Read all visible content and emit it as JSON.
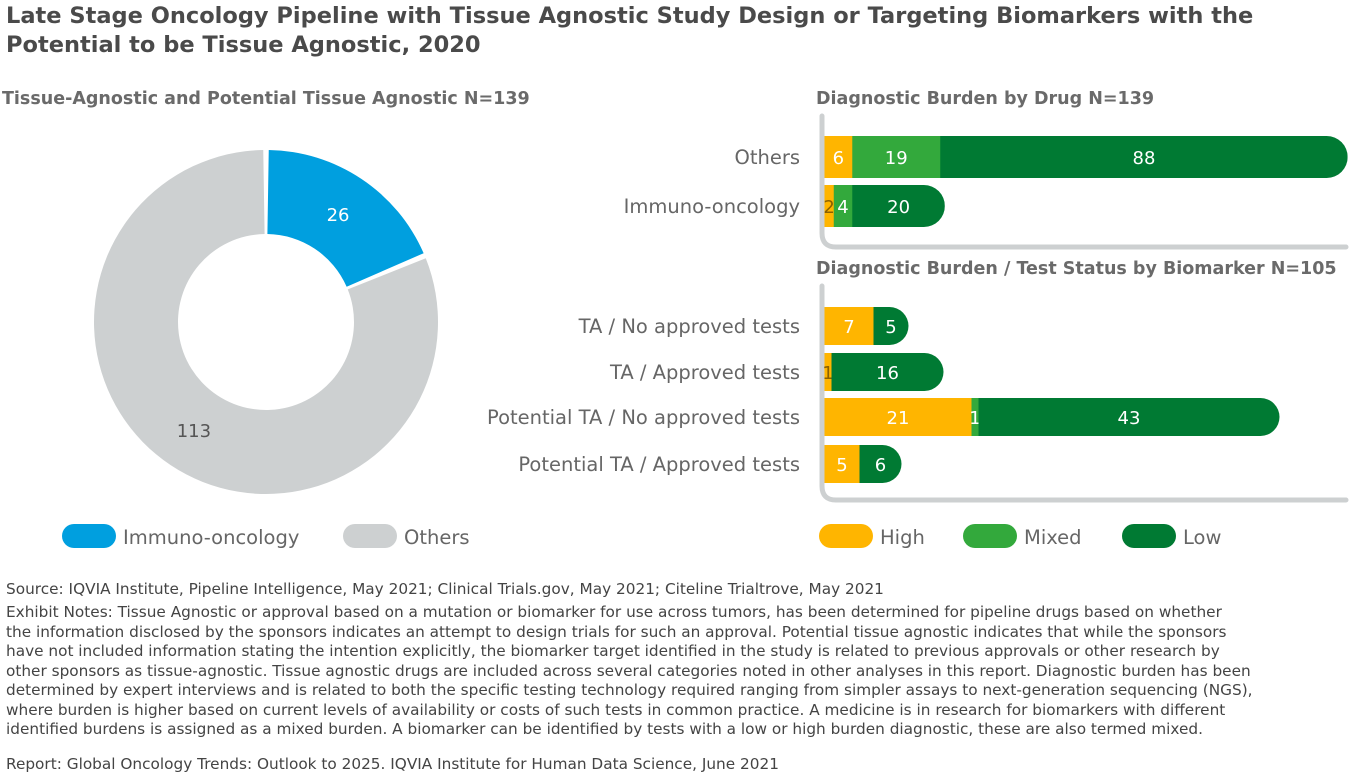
{
  "title": "Late Stage Oncology Pipeline with Tissue Agnostic Study Design or Targeting Biomarkers with the Potential to be Tissue Agnostic, 2020",
  "colors": {
    "immuno": "#009FDF",
    "others": "#CDD0D1",
    "high": "#FFB500",
    "mixed": "#33A93C",
    "low": "#007A33",
    "axis": "#CDD0D1",
    "category_text": "#666666"
  },
  "chart_data": [
    {
      "type": "pie",
      "variant": "donut",
      "title": "Tissue-Agnostic and Potential Tissue Agnostic N=139",
      "slices": [
        {
          "label": "Immuno-oncology",
          "value": 26,
          "color": "#009FDF"
        },
        {
          "label": "Others",
          "value": 113,
          "color": "#CDD0D1"
        }
      ],
      "legend": {
        "placement": "bottom",
        "entries": [
          "Immuno-oncology",
          "Others"
        ]
      }
    },
    {
      "type": "bar",
      "orientation": "horizontal",
      "stacked": true,
      "title": "Diagnostic Burden by Drug N=139",
      "categories": [
        "Others",
        "Immuno-oncology"
      ],
      "series": [
        {
          "name": "High",
          "color": "#FFB500",
          "values": [
            6,
            2
          ]
        },
        {
          "name": "Mixed",
          "color": "#33A93C",
          "values": [
            19,
            4
          ]
        },
        {
          "name": "Low",
          "color": "#007A33",
          "values": [
            88,
            20
          ]
        }
      ]
    },
    {
      "type": "bar",
      "orientation": "horizontal",
      "stacked": true,
      "title": "Diagnostic Burden / Test Status by Biomarker N=105",
      "categories": [
        "TA / No approved tests",
        "TA / Approved tests",
        "Potential TA / No approved tests",
        "Potential TA / Approved tests"
      ],
      "series": [
        {
          "name": "High",
          "color": "#FFB500",
          "values": [
            7,
            1,
            21,
            5
          ]
        },
        {
          "name": "Mixed",
          "color": "#33A93C",
          "values": [
            0,
            0,
            1,
            0
          ]
        },
        {
          "name": "Low",
          "color": "#007A33",
          "values": [
            5,
            16,
            43,
            6
          ]
        }
      ],
      "legend": {
        "placement": "bottom",
        "entries": [
          "High",
          "Mixed",
          "Low"
        ]
      }
    }
  ],
  "footer": {
    "source": "Source: IQVIA Institute, Pipeline Intelligence, May 2021; Clinical Trials.gov, May 2021; Citeline Trialtrove, May 2021",
    "notes_lines": [
      "Exhibit Notes: Tissue Agnostic or approval based on a mutation or biomarker for use across tumors, has been determined for pipeline drugs based on whether",
      "the information disclosed by the sponsors indicates an attempt to design trials for such an approval. Potential tissue agnostic indicates that while the sponsors",
      "have not included information stating the intention explicitly, the biomarker target identified in the study is related to previous approvals or other research by",
      "other sponsors as tissue-agnostic. Tissue agnostic drugs are included across several categories noted in other analyses in this report. Diagnostic burden has been",
      "determined by expert interviews and is related to both the specific testing technology required ranging from simpler assays to next-generation sequencing (NGS),",
      "where burden is higher based on current levels of availability or costs of such tests in common practice. A medicine is in research for biomarkers with different",
      "identified burdens is assigned as a mixed burden. A biomarker can be identified by tests with a low or high burden diagnostic, these are also termed mixed."
    ],
    "report": "Report: Global Oncology Trends: Outlook to 2025. IQVIA Institute for Human Data Science, June 2021"
  }
}
